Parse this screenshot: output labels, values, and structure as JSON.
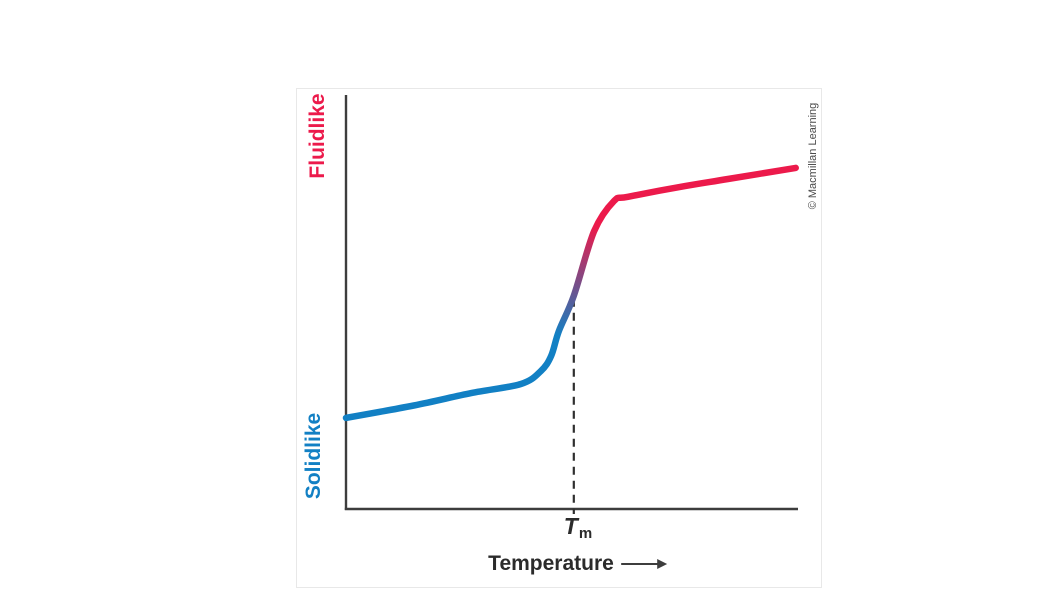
{
  "figure": {
    "y_axis_label_top": "Fluidlike",
    "y_axis_label_bottom": "Solidlike",
    "x_axis_label": "Temperature",
    "tm_symbol": "T",
    "tm_subscript": "m",
    "credit": "© Macmillan Learning"
  },
  "icons": {
    "temperature_arrow_icon": "long-right-arrow ⟶"
  },
  "colors": {
    "fluid_red": "#ec1a4b",
    "solid_blue": "#1280c4",
    "transition_purple": "#7d4b85",
    "axis": "#3d3d3d",
    "dashed_line": "#2f2f2f",
    "text": "#2b2b2b",
    "credit_text": "#4a4a4a",
    "panel_border": "#e8e8e8"
  },
  "chart_data": {
    "type": "line",
    "title": "",
    "xlabel": "Temperature",
    "ylabel": "",
    "y_axis_qualitative_low": "Solidlike",
    "y_axis_qualitative_high": "Fluidlike",
    "axes_numeric": false,
    "grid": false,
    "legend": false,
    "description": "Qualitative sigmoidal curve of molecular mobility vs temperature; solidlike (blue) below the melting transition, fluidlike (red) above, with a blue-to-red color gradient across the steep transition region.",
    "x_range_fraction": [
      0,
      1
    ],
    "y_range_fraction": [
      0,
      1
    ],
    "series": [
      {
        "name": "phase-behavior-curve",
        "color_low": "#1280c4",
        "color_high": "#ec1a4b",
        "points_fraction": [
          [
            0.0,
            0.22
          ],
          [
            0.15,
            0.25
          ],
          [
            0.277,
            0.28
          ],
          [
            0.387,
            0.302
          ],
          [
            0.431,
            0.333
          ],
          [
            0.454,
            0.37
          ],
          [
            0.471,
            0.43
          ],
          [
            0.504,
            0.515
          ],
          [
            0.549,
            0.671
          ],
          [
            0.593,
            0.744
          ],
          [
            0.624,
            0.754
          ],
          [
            0.75,
            0.78
          ],
          [
            0.845,
            0.797
          ],
          [
            0.995,
            0.824
          ]
        ]
      }
    ],
    "annotations": [
      {
        "type": "vertical-dashed-line",
        "label": "Tm",
        "x_fraction": 0.504,
        "y_from_fraction": -0.012,
        "y_to_fraction": 0.508
      }
    ]
  }
}
